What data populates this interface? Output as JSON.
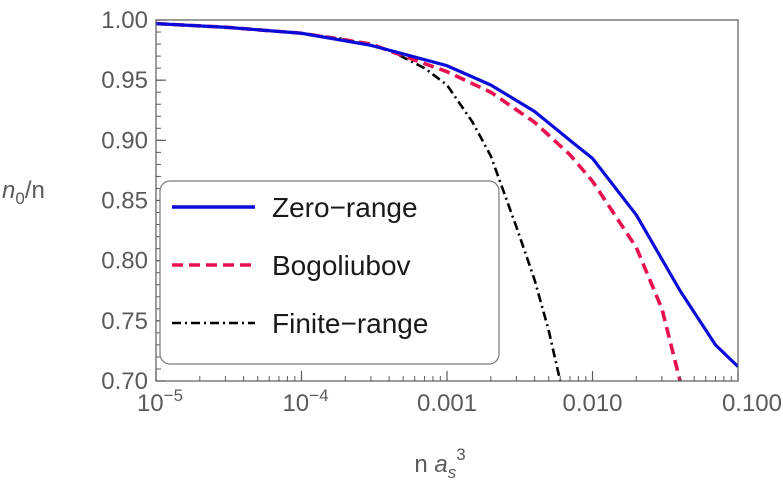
{
  "chart_data": {
    "type": "line",
    "xscale": "log",
    "xlim": [
      1e-05,
      0.1
    ],
    "ylim": [
      0.7,
      1.0
    ],
    "xlabel": "n a_s^3",
    "ylabel": "n_0/n",
    "xticks": [
      {
        "value": 1e-05,
        "label": "10",
        "exp": "−5"
      },
      {
        "value": 0.0001,
        "label": "10",
        "exp": "−4"
      },
      {
        "value": 0.001,
        "label": "0.001"
      },
      {
        "value": 0.01,
        "label": "0.010"
      },
      {
        "value": 0.1,
        "label": "0.100"
      }
    ],
    "yticks": [
      "1.00",
      "0.95",
      "0.90",
      "0.85",
      "0.80",
      "0.75",
      "0.70"
    ],
    "grid": false,
    "legend_position": "left",
    "series": [
      {
        "name": "Zero-range",
        "color": "#0b0bd9",
        "style": "solid",
        "x": [
          1e-05,
          3e-05,
          0.0001,
          0.0003,
          0.001,
          0.002,
          0.004,
          0.007,
          0.01,
          0.02,
          0.04,
          0.07,
          0.1
        ],
        "y": [
          0.997,
          0.994,
          0.989,
          0.979,
          0.962,
          0.946,
          0.924,
          0.9,
          0.885,
          0.838,
          0.775,
          0.73,
          0.712
        ]
      },
      {
        "name": "Bogoliubov",
        "color": "#e8114f",
        "style": "dashed",
        "x": [
          1e-05,
          3e-05,
          0.0001,
          0.0003,
          0.001,
          0.002,
          0.004,
          0.007,
          0.01,
          0.02,
          0.03,
          0.04
        ],
        "y": [
          0.997,
          0.994,
          0.989,
          0.98,
          0.957,
          0.94,
          0.915,
          0.888,
          0.866,
          0.811,
          0.76,
          0.7
        ]
      },
      {
        "name": "Finite-range",
        "color": "#000000",
        "style": "dashdot",
        "x": [
          1e-05,
          3e-05,
          0.0001,
          0.0002,
          0.0004,
          0.0007,
          0.001,
          0.0015,
          0.002,
          0.003,
          0.004,
          0.005,
          0.006
        ],
        "y": [
          0.997,
          0.994,
          0.989,
          0.984,
          0.975,
          0.96,
          0.946,
          0.915,
          0.887,
          0.828,
          0.784,
          0.742,
          0.7
        ]
      }
    ]
  }
}
